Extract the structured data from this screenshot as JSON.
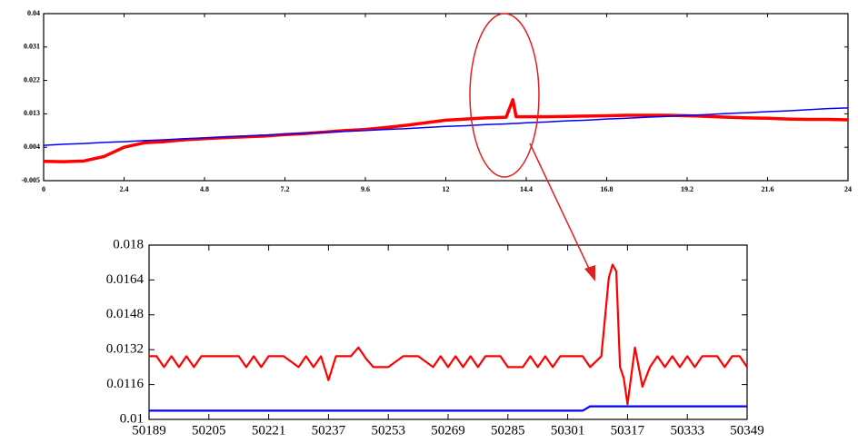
{
  "chart_data": [
    {
      "type": "line",
      "x": [
        0,
        0.6,
        1.2,
        1.8,
        2.4,
        3,
        3.6,
        4.2,
        4.8,
        5.4,
        6,
        6.6,
        7.2,
        7.8,
        8.4,
        9,
        9.6,
        10.2,
        10.8,
        11.4,
        12,
        12.6,
        13.2,
        13.8,
        14,
        14.1,
        14.4,
        15,
        15.6,
        16.2,
        16.8,
        17.4,
        18,
        18.6,
        19.2,
        19.8,
        20.4,
        21,
        21.6,
        22.2,
        22.8,
        23.4,
        24
      ],
      "series": [
        {
          "color": "#ff0000",
          "values": [
            0.0002,
            0.0001,
            0.0003,
            0.0015,
            0.004,
            0.0052,
            0.0055,
            0.006,
            0.0063,
            0.0066,
            0.0068,
            0.007,
            0.0074,
            0.0077,
            0.0081,
            0.0085,
            0.0088,
            0.0093,
            0.0099,
            0.0106,
            0.0113,
            0.0116,
            0.0119,
            0.0121,
            0.0168,
            0.0122,
            0.0122,
            0.0122,
            0.0123,
            0.0124,
            0.0125,
            0.0126,
            0.0126,
            0.0126,
            0.0125,
            0.0123,
            0.0121,
            0.0119,
            0.0118,
            0.0116,
            0.0115,
            0.0115,
            0.0114
          ]
        },
        {
          "color": "#0000ff",
          "values": [
            0.0045,
            0.0048,
            0.005,
            0.0053,
            0.0055,
            0.0058,
            0.006,
            0.0063,
            0.0065,
            0.0068,
            0.007,
            0.0073,
            0.0075,
            0.0078,
            0.008,
            0.0083,
            0.0085,
            0.0088,
            0.009,
            0.0093,
            0.0096,
            0.0098,
            0.0101,
            0.0103,
            0.0104,
            0.0104,
            0.0106,
            0.0108,
            0.0111,
            0.0113,
            0.0116,
            0.0118,
            0.0121,
            0.0123,
            0.0126,
            0.0128,
            0.0131,
            0.0133,
            0.0136,
            0.0138,
            0.0141,
            0.0144,
            0.0146
          ]
        }
      ],
      "xlim": [
        0,
        24
      ],
      "xticks": [
        0,
        2.4,
        4.8,
        7.2,
        9.6,
        12,
        14.4,
        16.8,
        19.2,
        21.6,
        24
      ],
      "ylim": [
        -0.005,
        0.04
      ],
      "yticks": [
        -0.005,
        0.004,
        0.013,
        0.022,
        0.031,
        0.04
      ]
    },
    {
      "type": "line",
      "x": [
        50189,
        50191,
        50193,
        50195,
        50197,
        50199,
        50201,
        50203,
        50205,
        50209,
        50213,
        50215,
        50217,
        50219,
        50221,
        50225,
        50229,
        50231,
        50233,
        50235,
        50237,
        50239,
        50243,
        50245,
        50247,
        50249,
        50253,
        50257,
        50261,
        50265,
        50267,
        50269,
        50271,
        50273,
        50275,
        50277,
        50279,
        50283,
        50285,
        50289,
        50291,
        50293,
        50295,
        50297,
        50299,
        50303,
        50305,
        50307,
        50310,
        50312,
        50313,
        50314,
        50315,
        50316,
        50317,
        50318,
        50319,
        50320,
        50321,
        50323,
        50325,
        50327,
        50329,
        50331,
        50333,
        50335,
        50337,
        50341,
        50343,
        50345,
        50347,
        50349
      ],
      "series": [
        {
          "color": "#ff0000",
          "values": [
            0.0129,
            0.0129,
            0.0124,
            0.0129,
            0.0124,
            0.0129,
            0.0124,
            0.0129,
            0.0129,
            0.0129,
            0.0129,
            0.0124,
            0.0129,
            0.0124,
            0.0129,
            0.0129,
            0.0124,
            0.0129,
            0.0124,
            0.0129,
            0.0118,
            0.0129,
            0.0129,
            0.0133,
            0.0128,
            0.0124,
            0.0124,
            0.0129,
            0.0129,
            0.0124,
            0.0129,
            0.0124,
            0.0129,
            0.0124,
            0.0129,
            0.0124,
            0.0129,
            0.0129,
            0.0124,
            0.0124,
            0.0129,
            0.0124,
            0.0129,
            0.0124,
            0.0129,
            0.0129,
            0.0129,
            0.0124,
            0.0129,
            0.0165,
            0.0171,
            0.0168,
            0.0124,
            0.0119,
            0.0107,
            0.012,
            0.0133,
            0.0124,
            0.0115,
            0.0124,
            0.0129,
            0.0124,
            0.0129,
            0.0124,
            0.0129,
            0.0124,
            0.0129,
            0.0129,
            0.0124,
            0.0129,
            0.0129,
            0.0124
          ]
        },
        {
          "color": "#0000ff",
          "values": [
            0.0104,
            0.0104,
            0.0104,
            0.0104,
            0.0104,
            0.0104,
            0.0104,
            0.0104,
            0.0104,
            0.0104,
            0.0104,
            0.0104,
            0.0104,
            0.0104,
            0.0104,
            0.0104,
            0.0104,
            0.0104,
            0.0104,
            0.0104,
            0.0104,
            0.0104,
            0.0104,
            0.0104,
            0.0104,
            0.0104,
            0.0104,
            0.0104,
            0.0104,
            0.0104,
            0.0104,
            0.0104,
            0.0104,
            0.0104,
            0.0104,
            0.0104,
            0.0104,
            0.0104,
            0.0104,
            0.0104,
            0.0104,
            0.0104,
            0.0104,
            0.0104,
            0.0104,
            0.0104,
            0.0104,
            0.0106,
            0.0106,
            0.0106,
            0.0106,
            0.0106,
            0.0106,
            0.0106,
            0.0106,
            0.0106,
            0.0106,
            0.0106,
            0.0106,
            0.0106,
            0.0106,
            0.0106,
            0.0106,
            0.0106,
            0.0106,
            0.0106,
            0.0106,
            0.0106,
            0.0106,
            0.0106,
            0.0106,
            0.0106
          ]
        }
      ],
      "xlim": [
        50189,
        50349
      ],
      "xticks": [
        50189,
        50205,
        50221,
        50237,
        50253,
        50269,
        50285,
        50301,
        50317,
        50333,
        50349
      ],
      "ylim": [
        0.01,
        0.018
      ],
      "yticks": [
        0.01,
        0.0116,
        0.0132,
        0.0148,
        0.0164,
        0.018
      ]
    }
  ]
}
